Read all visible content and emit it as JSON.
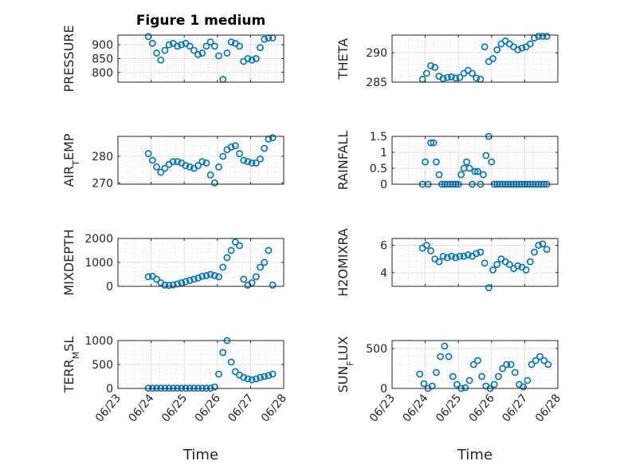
{
  "figure": {
    "title": "Figure 1 medium"
  },
  "chart_data": [
    {
      "type": "scatter",
      "ylabel": "PRESSURE",
      "ylim": [
        765,
        935
      ],
      "yticks": [
        800,
        850,
        900
      ],
      "grid": true,
      "x": [
        "06/23 22:00",
        "06/24 01:00",
        "06/24 04:00",
        "06/24 07:00",
        "06/24 10:00",
        "06/24 13:00",
        "06/24 16:00",
        "06/24 19:00",
        "06/24 22:00",
        "06/25 01:00",
        "06/25 04:00",
        "06/25 07:00",
        "06/25 10:00",
        "06/25 13:00",
        "06/25 16:00",
        "06/25 19:00",
        "06/25 22:00",
        "06/26 01:00",
        "06/26 04:00",
        "06/26 07:00",
        "06/26 10:00",
        "06/26 13:00",
        "06/26 16:00",
        "06/26 19:00",
        "06/26 22:00",
        "06/27 01:00",
        "06/27 04:00",
        "06/27 07:00",
        "06/27 10:00",
        "06/27 13:00",
        "06/27 16:00"
      ],
      "y": [
        930,
        905,
        870,
        845,
        880,
        900,
        905,
        895,
        900,
        905,
        895,
        880,
        865,
        870,
        895,
        910,
        895,
        860,
        775,
        870,
        910,
        905,
        895,
        840,
        850,
        845,
        850,
        890,
        920,
        925,
        925
      ]
    },
    {
      "type": "scatter",
      "ylabel": "THETA",
      "ylim": [
        285,
        293
      ],
      "yticks": [
        285,
        290
      ],
      "grid": true,
      "x": [
        "06/23 22:00",
        "06/24 01:00",
        "06/24 04:00",
        "06/24 07:00",
        "06/24 10:00",
        "06/24 13:00",
        "06/24 16:00",
        "06/24 19:00",
        "06/24 22:00",
        "06/25 01:00",
        "06/25 04:00",
        "06/25 07:00",
        "06/25 10:00",
        "06/25 13:00",
        "06/25 16:00",
        "06/25 19:00",
        "06/25 22:00",
        "06/26 01:00",
        "06/26 04:00",
        "06/26 07:00",
        "06/26 10:00",
        "06/26 13:00",
        "06/26 16:00",
        "06/26 19:00",
        "06/26 22:00",
        "06/27 01:00",
        "06/27 04:00",
        "06/27 07:00",
        "06/27 10:00",
        "06/27 13:00",
        "06/27 16:00"
      ],
      "y": [
        285.5,
        286.5,
        287.8,
        287.5,
        286,
        285.6,
        285.8,
        285.9,
        285.7,
        285.8,
        286.5,
        287,
        286.5,
        285.7,
        285.5,
        291,
        288.5,
        289,
        290.5,
        291.5,
        292,
        291.5,
        291,
        290.5,
        290.8,
        291,
        291.5,
        292.5,
        292.8,
        292.8,
        292.8
      ]
    },
    {
      "type": "scatter",
      "ylabel": "AIR_TEMP",
      "ylim": [
        269.5,
        287.5
      ],
      "yticks": [
        270,
        280
      ],
      "grid": true,
      "x": [
        "06/23 22:00",
        "06/24 01:00",
        "06/24 04:00",
        "06/24 07:00",
        "06/24 10:00",
        "06/24 13:00",
        "06/24 16:00",
        "06/24 19:00",
        "06/24 22:00",
        "06/25 01:00",
        "06/25 04:00",
        "06/25 07:00",
        "06/25 10:00",
        "06/25 13:00",
        "06/25 16:00",
        "06/25 19:00",
        "06/25 22:00",
        "06/26 01:00",
        "06/26 04:00",
        "06/26 07:00",
        "06/26 10:00",
        "06/26 13:00",
        "06/26 16:00",
        "06/26 19:00",
        "06/26 22:00",
        "06/27 01:00",
        "06/27 04:00",
        "06/27 07:00",
        "06/27 10:00",
        "06/27 13:00",
        "06/27 16:00"
      ],
      "y": [
        281,
        278.5,
        276,
        274,
        275.5,
        277,
        278,
        278,
        277.5,
        276.5,
        276,
        275.5,
        276.5,
        278,
        277.5,
        273,
        270,
        276,
        280,
        282.5,
        283.5,
        284,
        281,
        278.5,
        278,
        277.5,
        277.5,
        279,
        283,
        286.5,
        287
      ]
    },
    {
      "type": "scatter",
      "ylabel": "RAINFALL",
      "ylim": [
        0,
        1.5
      ],
      "yticks": [
        0,
        0.5,
        1,
        1.5
      ],
      "yticklabels": [
        "0",
        "0.5",
        "1",
        "1.5"
      ],
      "grid": true,
      "x": [
        "06/23 22:00",
        "06/24 00:00",
        "06/24 02:00",
        "06/24 04:00",
        "06/24 06:00",
        "06/24 08:00",
        "06/24 10:00",
        "06/24 12:00",
        "06/24 14:00",
        "06/24 16:00",
        "06/24 18:00",
        "06/24 20:00",
        "06/24 22:00",
        "06/25 00:00",
        "06/25 02:00",
        "06/25 04:00",
        "06/25 06:00",
        "06/25 08:00",
        "06/25 10:00",
        "06/25 12:00",
        "06/25 14:00",
        "06/25 16:00",
        "06/25 18:00",
        "06/25 20:00",
        "06/25 22:00",
        "06/26 00:00",
        "06/26 02:00",
        "06/26 04:00",
        "06/26 06:00",
        "06/26 08:00",
        "06/26 10:00",
        "06/26 12:00",
        "06/26 14:00",
        "06/26 16:00",
        "06/26 18:00",
        "06/26 20:00",
        "06/26 22:00",
        "06/27 00:00",
        "06/27 02:00",
        "06/27 04:00",
        "06/27 06:00",
        "06/27 08:00",
        "06/27 10:00",
        "06/27 12:00",
        "06/27 14:00",
        "06/27 16:00"
      ],
      "y": [
        0,
        0.7,
        0,
        1.3,
        1.3,
        0.7,
        0.3,
        0,
        0,
        0,
        0,
        0,
        0,
        0,
        0.3,
        0.5,
        0.7,
        0.5,
        0,
        0.4,
        0.4,
        0,
        0.3,
        0.9,
        1.5,
        0.7,
        0,
        0,
        0,
        0,
        0,
        0,
        0,
        0,
        0,
        0,
        0,
        0,
        0,
        0,
        0,
        0,
        0,
        0,
        0,
        0
      ]
    },
    {
      "type": "scatter",
      "ylabel": "MIXDEPTH",
      "ylim": [
        0,
        2000
      ],
      "yticks": [
        0,
        1000,
        2000
      ],
      "grid": true,
      "x": [
        "06/23 22:00",
        "06/24 01:00",
        "06/24 04:00",
        "06/24 07:00",
        "06/24 10:00",
        "06/24 13:00",
        "06/24 16:00",
        "06/24 19:00",
        "06/24 22:00",
        "06/25 01:00",
        "06/25 04:00",
        "06/25 07:00",
        "06/25 10:00",
        "06/25 13:00",
        "06/25 16:00",
        "06/25 19:00",
        "06/25 22:00",
        "06/26 01:00",
        "06/26 04:00",
        "06/26 07:00",
        "06/26 10:00",
        "06/26 13:00",
        "06/26 16:00",
        "06/26 19:00",
        "06/26 22:00",
        "06/27 01:00",
        "06/27 04:00",
        "06/27 07:00",
        "06/27 10:00",
        "06/27 13:00",
        "06/27 16:00"
      ],
      "y": [
        400,
        420,
        300,
        150,
        50,
        40,
        60,
        100,
        150,
        200,
        250,
        300,
        350,
        420,
        450,
        500,
        450,
        400,
        800,
        1200,
        1500,
        1850,
        1700,
        300,
        50,
        150,
        400,
        800,
        1000,
        1500,
        50
      ]
    },
    {
      "type": "scatter",
      "ylabel": "H2OMIXRA",
      "ylim": [
        3,
        6.5
      ],
      "yticks": [
        4,
        6
      ],
      "grid": true,
      "x": [
        "06/23 22:00",
        "06/24 01:00",
        "06/24 04:00",
        "06/24 07:00",
        "06/24 10:00",
        "06/24 13:00",
        "06/24 16:00",
        "06/24 19:00",
        "06/24 22:00",
        "06/25 01:00",
        "06/25 04:00",
        "06/25 07:00",
        "06/25 10:00",
        "06/25 13:00",
        "06/25 16:00",
        "06/25 19:00",
        "06/25 22:00",
        "06/26 01:00",
        "06/26 04:00",
        "06/26 07:00",
        "06/26 10:00",
        "06/26 13:00",
        "06/26 16:00",
        "06/26 19:00",
        "06/26 22:00",
        "06/27 01:00",
        "06/27 04:00",
        "06/27 07:00",
        "06/27 10:00",
        "06/27 13:00",
        "06/27 16:00"
      ],
      "y": [
        5.8,
        6.0,
        5.6,
        5.0,
        4.8,
        5.2,
        5.1,
        5.2,
        5.1,
        5.2,
        5.2,
        5.3,
        5.2,
        5.4,
        5.5,
        4.7,
        2.9,
        4.2,
        4.6,
        5.0,
        4.8,
        4.6,
        4.3,
        4.5,
        4.4,
        4.2,
        4.8,
        5.5,
        6.0,
        6.1,
        5.7
      ]
    },
    {
      "type": "scatter",
      "ylabel": "TERR_MSL",
      "ylim": [
        0,
        1000
      ],
      "yticks": [
        0,
        500,
        1000
      ],
      "grid": true,
      "x": [
        "06/23 22:00",
        "06/24 01:00",
        "06/24 04:00",
        "06/24 07:00",
        "06/24 10:00",
        "06/24 13:00",
        "06/24 16:00",
        "06/24 19:00",
        "06/24 22:00",
        "06/25 01:00",
        "06/25 04:00",
        "06/25 07:00",
        "06/25 10:00",
        "06/25 13:00",
        "06/25 16:00",
        "06/25 19:00",
        "06/25 22:00",
        "06/26 01:00",
        "06/26 04:00",
        "06/26 07:00",
        "06/26 10:00",
        "06/26 13:00",
        "06/26 16:00",
        "06/26 19:00",
        "06/26 22:00",
        "06/27 01:00",
        "06/27 04:00",
        "06/27 07:00",
        "06/27 10:00",
        "06/27 13:00",
        "06/27 16:00"
      ],
      "y": [
        5,
        5,
        5,
        5,
        5,
        5,
        5,
        5,
        5,
        5,
        5,
        5,
        5,
        5,
        5,
        5,
        30,
        300,
        750,
        1000,
        550,
        350,
        280,
        230,
        200,
        180,
        200,
        230,
        250,
        270,
        300
      ]
    },
    {
      "type": "scatter",
      "ylabel": "SUN_FLUX",
      "ylim": [
        0,
        600
      ],
      "yticks": [
        0,
        500
      ],
      "grid": true,
      "x": [
        "06/23 20:00",
        "06/23 23:00",
        "06/24 02:00",
        "06/24 05:00",
        "06/24 08:00",
        "06/24 11:00",
        "06/24 14:00",
        "06/24 17:00",
        "06/24 20:00",
        "06/24 23:00",
        "06/25 02:00",
        "06/25 05:00",
        "06/25 08:00",
        "06/25 11:00",
        "06/25 14:00",
        "06/25 17:00",
        "06/25 20:00",
        "06/25 23:00",
        "06/26 02:00",
        "06/26 05:00",
        "06/26 08:00",
        "06/26 11:00",
        "06/26 14:00",
        "06/26 17:00",
        "06/26 20:00",
        "06/26 23:00",
        "06/27 02:00",
        "06/27 05:00",
        "06/27 08:00",
        "06/27 11:00",
        "06/27 14:00",
        "06/27 17:00"
      ],
      "y": [
        180,
        60,
        0,
        30,
        200,
        400,
        530,
        400,
        150,
        50,
        0,
        10,
        100,
        300,
        350,
        150,
        30,
        0,
        50,
        150,
        250,
        300,
        300,
        200,
        50,
        20,
        100,
        300,
        350,
        400,
        350,
        300
      ]
    }
  ],
  "x_axis": {
    "ticklabels": [
      "06/23",
      "06/24",
      "06/25",
      "06/26",
      "06/27",
      "06/28"
    ],
    "label": "Time"
  },
  "colors": {
    "marker": "#0072BD",
    "grid": "#dfdfdf",
    "axis": "#262626"
  }
}
